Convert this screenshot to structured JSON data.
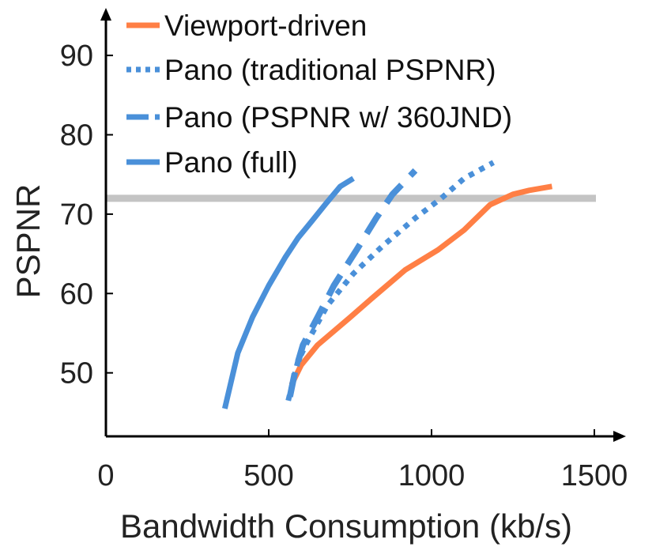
{
  "chart_data": {
    "type": "line",
    "title": "",
    "xlabel": "Bandwidth Consumption (kb/s)",
    "ylabel": "PSPNR",
    "xlim": [
      0,
      1500
    ],
    "ylim": [
      42,
      93
    ],
    "xticks": [
      0,
      500,
      1000,
      1500
    ],
    "yticks": [
      50,
      60,
      70,
      80,
      90
    ],
    "xtick_labels": [
      "0",
      "500",
      "1000",
      "1500"
    ],
    "ytick_labels": [
      "50",
      "60",
      "70",
      "80",
      "90"
    ],
    "reference_line": {
      "y": 72,
      "color": "#c4c4c4"
    },
    "legend_position": "top-left",
    "series": [
      {
        "name": "Viewport-driven",
        "color": "#ff7f45",
        "style": "solid",
        "points": [
          [
            570,
            48.5
          ],
          [
            600,
            51
          ],
          [
            650,
            53.5
          ],
          [
            750,
            57
          ],
          [
            820,
            59.5
          ],
          [
            920,
            63
          ],
          [
            1020,
            65.5
          ],
          [
            1100,
            68
          ],
          [
            1180,
            71.2
          ],
          [
            1250,
            72.5
          ],
          [
            1300,
            73
          ],
          [
            1370,
            73.5
          ]
        ]
      },
      {
        "name": "Pano (traditional PSPNR)",
        "color": "#4a90d9",
        "style": "dotted",
        "points": [
          [
            560,
            46.5
          ],
          [
            575,
            49
          ],
          [
            590,
            51.5
          ],
          [
            620,
            54
          ],
          [
            680,
            58.5
          ],
          [
            760,
            62.5
          ],
          [
            850,
            66
          ],
          [
            950,
            69.5
          ],
          [
            1030,
            72
          ],
          [
            1100,
            74.5
          ],
          [
            1190,
            76.5
          ]
        ]
      },
      {
        "name": "Pano (PSPNR w/ 360JND)",
        "color": "#4a90d9",
        "style": "dashed",
        "points": [
          [
            565,
            47
          ],
          [
            580,
            50
          ],
          [
            605,
            53.5
          ],
          [
            650,
            57
          ],
          [
            700,
            61
          ],
          [
            770,
            65.5
          ],
          [
            830,
            69.5
          ],
          [
            880,
            72.5
          ],
          [
            950,
            75.5
          ]
        ]
      },
      {
        "name": "Pano (full)",
        "color": "#4a90d9",
        "style": "solid",
        "points": [
          [
            365,
            45.5
          ],
          [
            405,
            52.5
          ],
          [
            450,
            57
          ],
          [
            500,
            61
          ],
          [
            550,
            64.5
          ],
          [
            590,
            67
          ],
          [
            630,
            69
          ],
          [
            675,
            71.3
          ],
          [
            720,
            73.5
          ],
          [
            760,
            74.5
          ]
        ]
      }
    ]
  }
}
